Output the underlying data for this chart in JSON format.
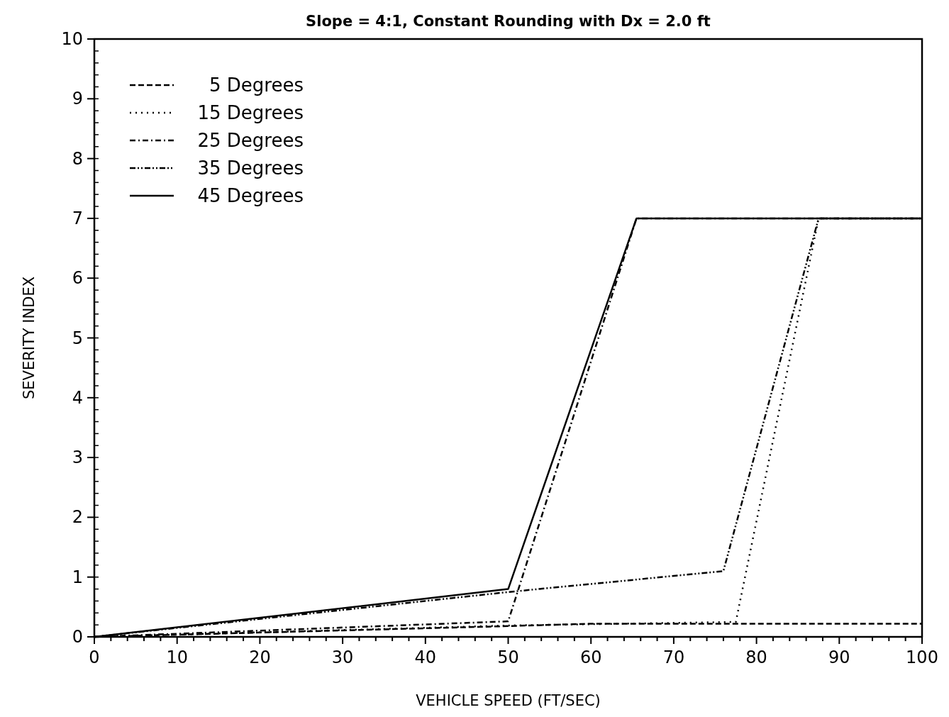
{
  "chart_data": {
    "type": "line",
    "title": "Slope = 4:1,  Constant Rounding with Dx = 2.0 ft",
    "xlabel": "VEHICLE SPEED (FT/SEC)",
    "ylabel": "SEVERITY INDEX",
    "xlim": [
      0,
      100
    ],
    "ylim": [
      0,
      10
    ],
    "xticks": [
      0,
      {
        "value": 2,
        "label": null
      },
      {
        "value": 4,
        "label": null
      },
      {
        "value": 6,
        "label": null
      },
      {
        "value": 8,
        "label": null
      },
      10,
      {
        "value": 12,
        "label": null
      },
      {
        "value": 14,
        "label": null
      },
      {
        "value": 16,
        "label": null
      },
      {
        "value": 18,
        "label": null
      },
      20,
      {
        "value": 22,
        "label": null
      },
      {
        "value": 24,
        "label": null
      },
      {
        "value": 26,
        "label": null
      },
      {
        "value": 28,
        "label": null
      },
      30,
      {
        "value": 32,
        "label": null
      },
      {
        "value": 34,
        "label": null
      },
      {
        "value": 36,
        "label": null
      },
      {
        "value": 38,
        "label": null
      },
      40,
      {
        "value": 42,
        "label": null
      },
      {
        "value": 44,
        "label": null
      },
      {
        "value": 46,
        "label": null
      },
      {
        "value": 48,
        "label": null
      },
      50,
      {
        "value": 52,
        "label": null
      },
      {
        "value": 54,
        "label": null
      },
      {
        "value": 56,
        "label": null
      },
      {
        "value": 58,
        "label": null
      },
      60,
      {
        "value": 62,
        "label": null
      },
      {
        "value": 64,
        "label": null
      },
      {
        "value": 66,
        "label": null
      },
      {
        "value": 68,
        "label": null
      },
      70,
      {
        "value": 72,
        "label": null
      },
      {
        "value": 74,
        "label": null
      },
      {
        "value": 76,
        "label": null
      },
      {
        "value": 78,
        "label": null
      },
      80,
      {
        "value": 82,
        "label": null
      },
      {
        "value": 84,
        "label": null
      },
      {
        "value": 86,
        "label": null
      },
      {
        "value": 88,
        "label": null
      },
      90,
      {
        "value": 92,
        "label": null
      },
      {
        "value": 94,
        "label": null
      },
      {
        "value": 96,
        "label": null
      },
      {
        "value": 98,
        "label": null
      },
      100
    ],
    "yticks": [
      0,
      1,
      2,
      3,
      4,
      5,
      6,
      7,
      8,
      9,
      10
    ],
    "grid": false,
    "legend": "top left",
    "series": [
      {
        "name": "5 Degrees",
        "color": "#000000",
        "line_style": "dashed",
        "x": [
          0,
          50,
          60,
          100
        ],
        "values": [
          0,
          0.18,
          0.22,
          0.22
        ]
      },
      {
        "name": "15 Degrees",
        "color": "#000000",
        "line_style": "dotted",
        "x": [
          0,
          50,
          77.5,
          87.5,
          100
        ],
        "values": [
          0,
          0.19,
          0.25,
          7,
          7
        ]
      },
      {
        "name": "25 Degrees",
        "color": "#000000",
        "line_style": "dashdot",
        "x": [
          0,
          50,
          65.5,
          100
        ],
        "values": [
          0,
          0.26,
          7,
          7
        ]
      },
      {
        "name": "35 Degrees",
        "color": "#000000",
        "line_style": "dashdotdot",
        "x": [
          0,
          50,
          76,
          87.5,
          100
        ],
        "values": [
          0,
          0.75,
          1.1,
          7,
          7
        ]
      },
      {
        "name": "45 Degrees",
        "color": "#000000",
        "line_style": "solid",
        "x": [
          0,
          50,
          65.5,
          100
        ],
        "values": [
          0,
          0.8,
          7,
          7
        ]
      }
    ]
  }
}
